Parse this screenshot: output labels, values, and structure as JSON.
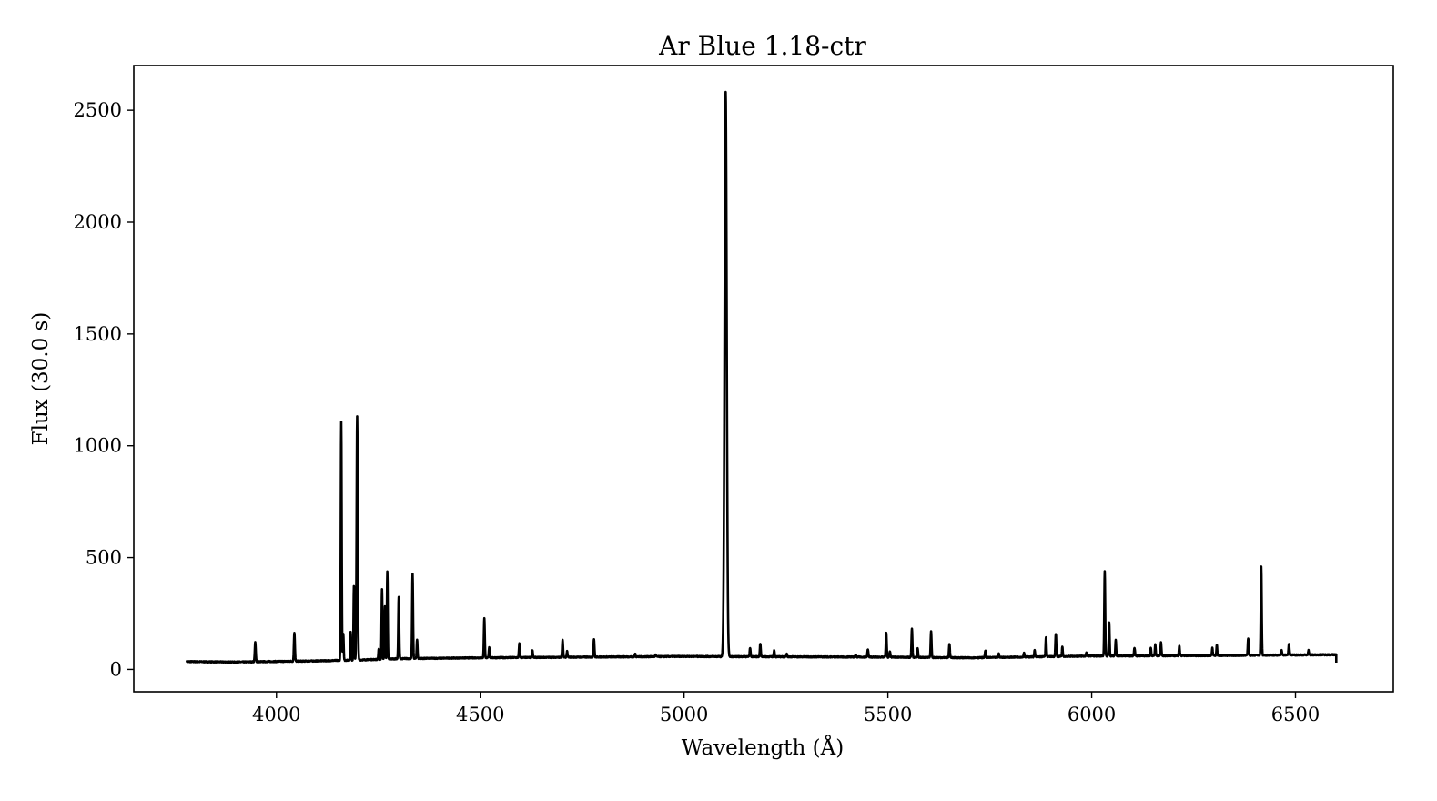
{
  "chart_data": {
    "type": "line",
    "title": "Ar Blue 1.18-ctr",
    "xlabel": "Wavelength (Å)",
    "ylabel": "Flux (30.0 s)",
    "xlim": [
      3650,
      6740
    ],
    "ylim": [
      -100,
      2700
    ],
    "xticks": [
      4000,
      4500,
      5000,
      5500,
      6000,
      6500
    ],
    "yticks": [
      0,
      500,
      1000,
      1500,
      2000,
      2500
    ],
    "grid": false,
    "series": [
      {
        "color": "#000000",
        "x_range": [
          3780,
          6600
        ],
        "continuum": [
          [
            3780,
            35
          ],
          [
            3900,
            33
          ],
          [
            4100,
            38
          ],
          [
            4200,
            42
          ],
          [
            4300,
            48
          ],
          [
            4500,
            52
          ],
          [
            5000,
            58
          ],
          [
            5500,
            55
          ],
          [
            5700,
            52
          ],
          [
            6000,
            60
          ],
          [
            6300,
            62
          ],
          [
            6600,
            66
          ]
        ],
        "lines": [
          [
            3948,
            120,
            1.2
          ],
          [
            4044,
            165,
            1.2
          ],
          [
            4159,
            1105,
            1.1
          ],
          [
            4164,
            160,
            1.0
          ],
          [
            4182,
            170,
            1.0
          ],
          [
            4190,
            370,
            1.0
          ],
          [
            4198,
            1130,
            1.4
          ],
          [
            4251,
            90,
            1.0
          ],
          [
            4259,
            360,
            1.0
          ],
          [
            4266,
            280,
            1.0
          ],
          [
            4272,
            440,
            1.0
          ],
          [
            4300,
            325,
            1.1
          ],
          [
            4334,
            425,
            1.1
          ],
          [
            4345,
            135,
            1.0
          ],
          [
            4510,
            230,
            1.1
          ],
          [
            4522,
            100,
            1.0
          ],
          [
            4596,
            115,
            1.1
          ],
          [
            4628,
            85,
            1.0
          ],
          [
            4702,
            130,
            1.1
          ],
          [
            4713,
            80,
            1.0
          ],
          [
            4779,
            135,
            1.1
          ],
          [
            4880,
            70,
            1.0
          ],
          [
            4930,
            65,
            1.0
          ],
          [
            5102,
            2580,
            2.6
          ],
          [
            5162,
            95,
            1.1
          ],
          [
            5187,
            115,
            1.1
          ],
          [
            5221,
            85,
            1.1
          ],
          [
            5252,
            70,
            1.0
          ],
          [
            5421,
            65,
            1.0
          ],
          [
            5451,
            90,
            1.1
          ],
          [
            5496,
            165,
            1.1
          ],
          [
            5505,
            80,
            1.0
          ],
          [
            5559,
            180,
            1.1
          ],
          [
            5573,
            95,
            1.0
          ],
          [
            5606,
            170,
            1.1
          ],
          [
            5651,
            115,
            1.1
          ],
          [
            5739,
            85,
            1.0
          ],
          [
            5772,
            70,
            1.0
          ],
          [
            5834,
            75,
            1.0
          ],
          [
            5860,
            85,
            1.0
          ],
          [
            5888,
            145,
            1.1
          ],
          [
            5912,
            160,
            1.1
          ],
          [
            5928,
            100,
            1.0
          ],
          [
            5987,
            75,
            1.0
          ],
          [
            6032,
            440,
            1.1
          ],
          [
            6043,
            210,
            1.0
          ],
          [
            6059,
            130,
            1.0
          ],
          [
            6105,
            95,
            1.2
          ],
          [
            6145,
            95,
            1.0
          ],
          [
            6156,
            110,
            1.0
          ],
          [
            6170,
            120,
            1.1
          ],
          [
            6215,
            105,
            1.1
          ],
          [
            6296,
            95,
            1.0
          ],
          [
            6307,
            110,
            1.0
          ],
          [
            6384,
            140,
            1.1
          ],
          [
            6416,
            460,
            1.1
          ],
          [
            6466,
            85,
            1.0
          ],
          [
            6484,
            115,
            1.1
          ],
          [
            6532,
            85,
            1.0
          ]
        ]
      }
    ]
  }
}
